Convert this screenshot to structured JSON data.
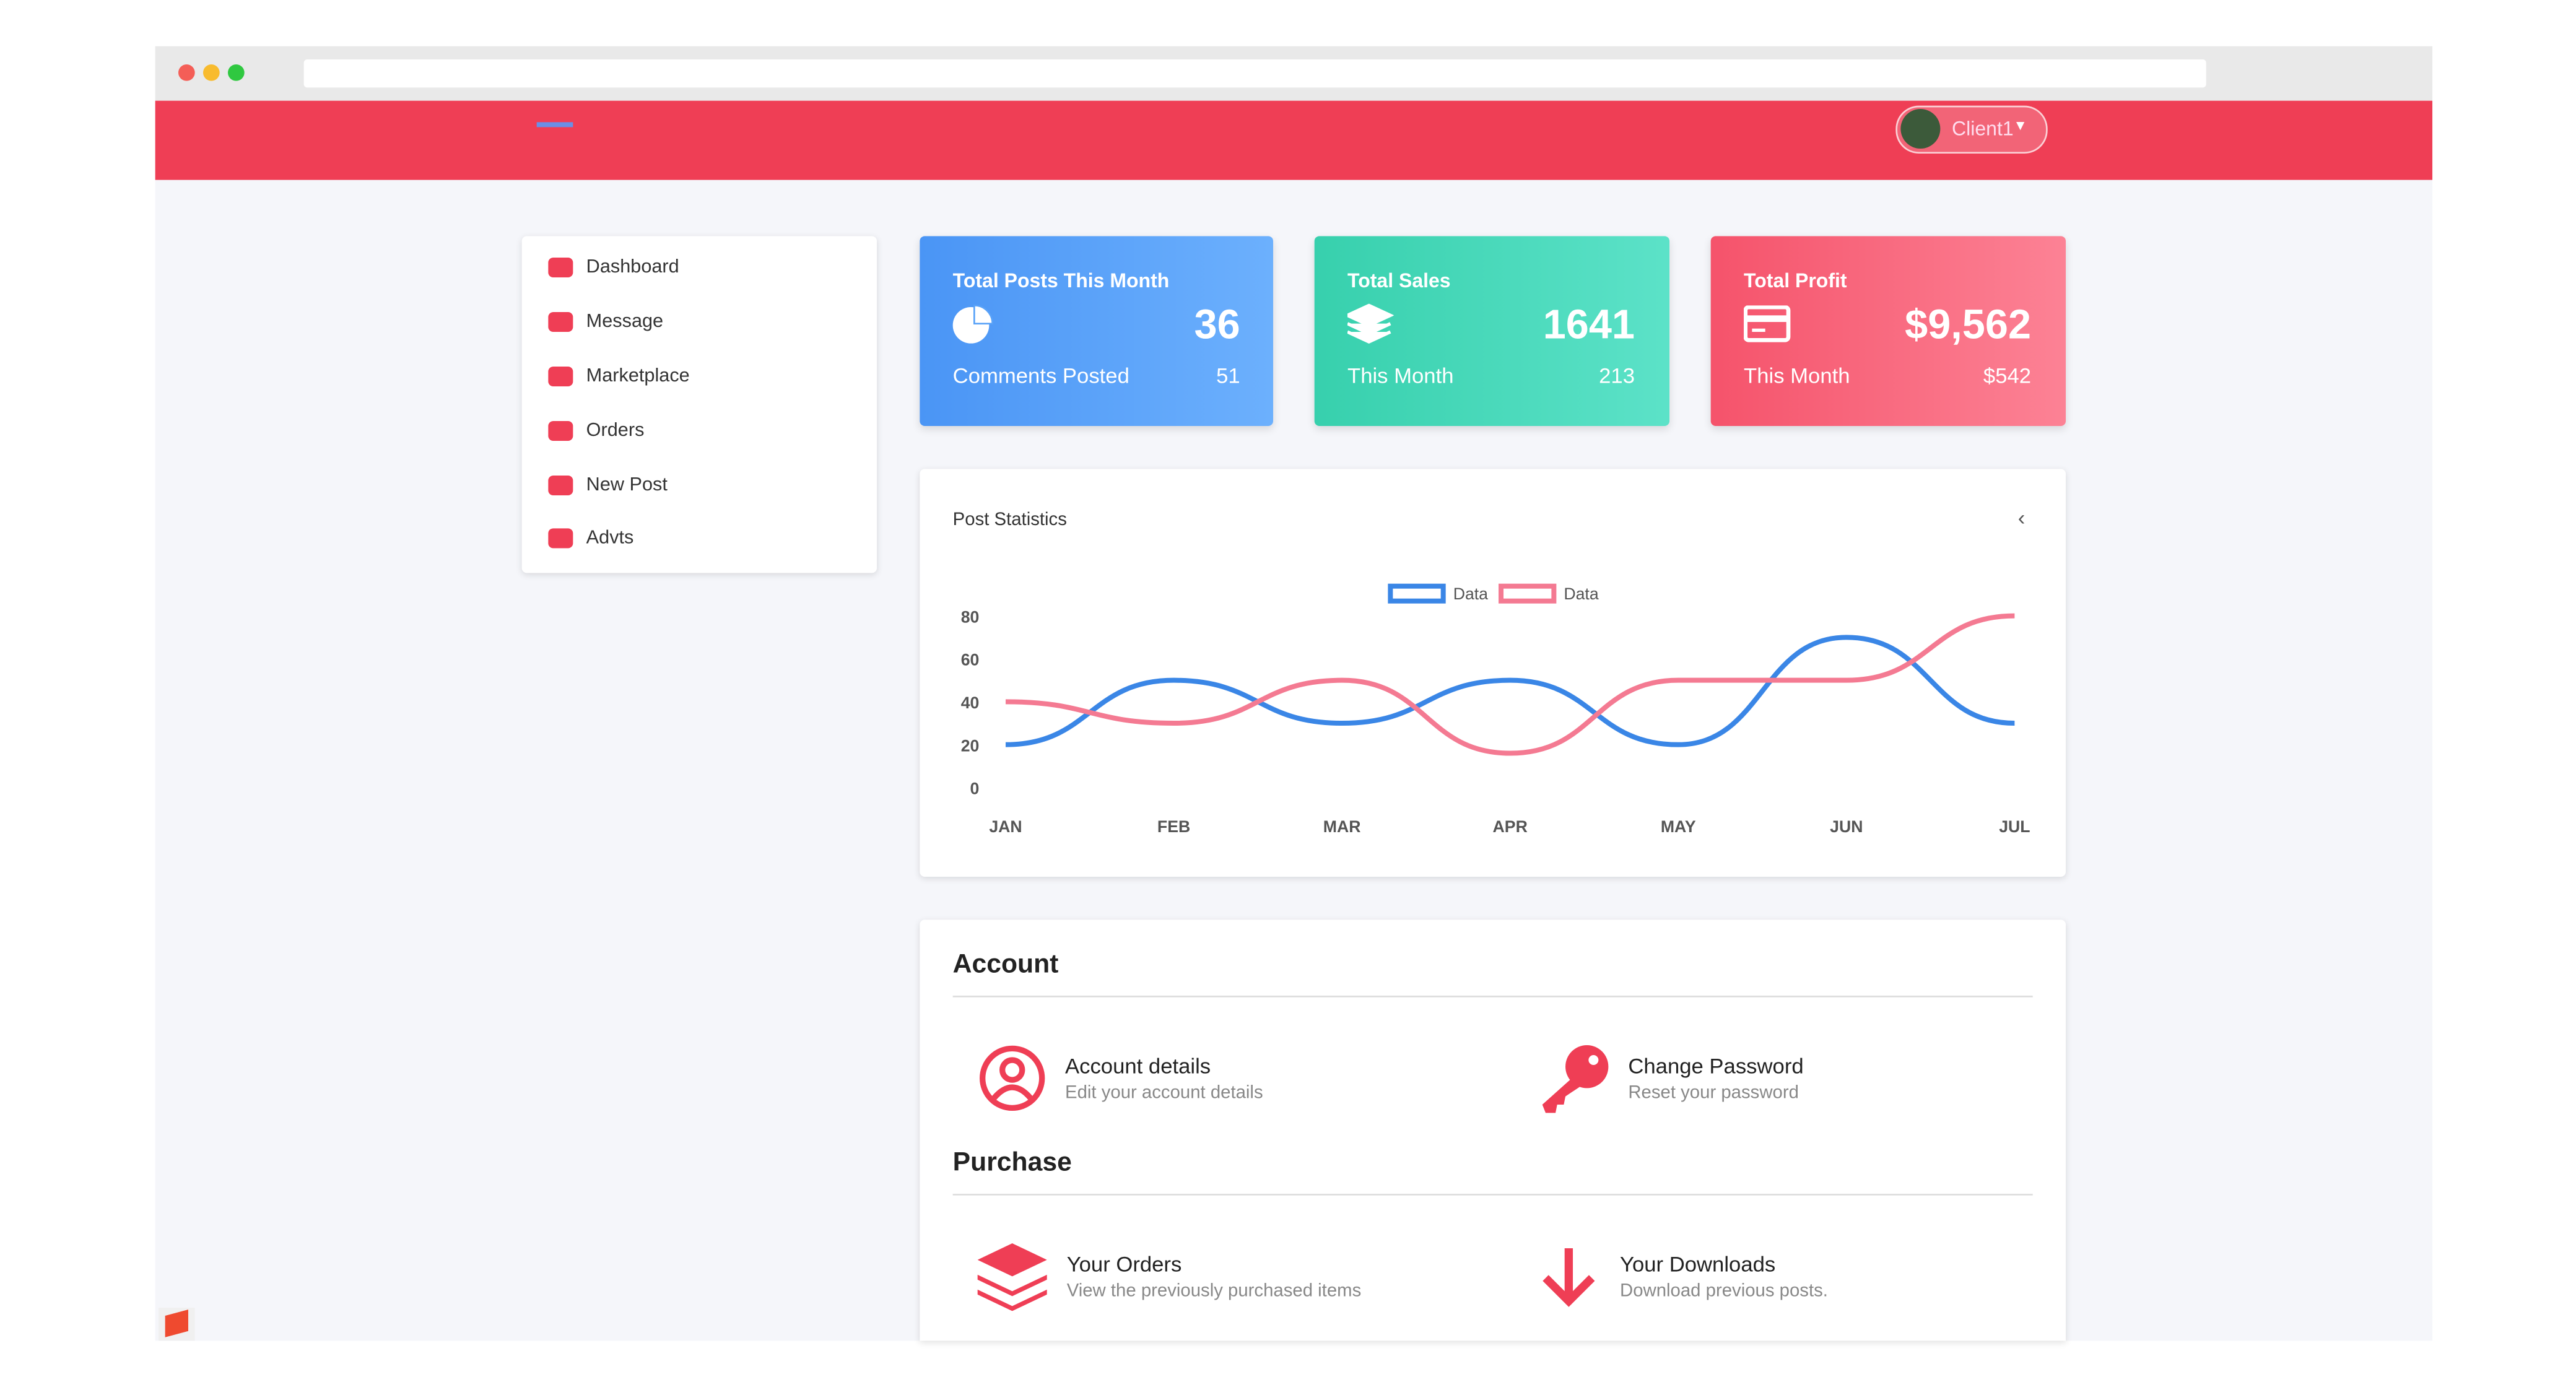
{
  "header": {
    "user": "Client1"
  },
  "sidebar": {
    "items": [
      "Dashboard",
      "Message",
      "Marketplace",
      "Orders",
      "New Post",
      "Advts"
    ]
  },
  "stats": [
    {
      "title": "Total Posts This Month",
      "value": 36,
      "sub_label": "Comments Posted",
      "sub_value": 51
    },
    {
      "title": "Total Sales",
      "value": 1641,
      "sub_label": "This Month",
      "sub_value": 213
    },
    {
      "title": "Total Profit",
      "value": "$9,562",
      "sub_label": "This Month",
      "sub_value": "$542"
    }
  ],
  "post_statistics": {
    "type": "line",
    "title": "Post Statistics",
    "categories": [
      "JAN",
      "FEB",
      "MAR",
      "APR",
      "MAY",
      "JUN",
      "JUL"
    ],
    "series": [
      {
        "name": "Data",
        "color": "#3a86e6",
        "values": [
          20,
          50,
          30,
          50,
          20,
          70,
          30
        ]
      },
      {
        "name": "Data",
        "color": "#f47a92",
        "values": [
          40,
          30,
          50,
          16,
          50,
          50,
          80
        ]
      }
    ],
    "ylim": [
      0,
      80
    ],
    "yticks": [
      0,
      20,
      40,
      60,
      80
    ]
  },
  "account": {
    "title": "Account",
    "items": [
      {
        "title": "Account details",
        "subtitle": "Edit your account details"
      },
      {
        "title": "Change Password",
        "subtitle": "Reset your password"
      }
    ]
  },
  "purchase": {
    "title": "Purchase",
    "items": [
      {
        "title": "Your Orders",
        "subtitle": "View the previously purchased items"
      },
      {
        "title": "Your Downloads",
        "subtitle": "Download previous posts."
      }
    ]
  }
}
